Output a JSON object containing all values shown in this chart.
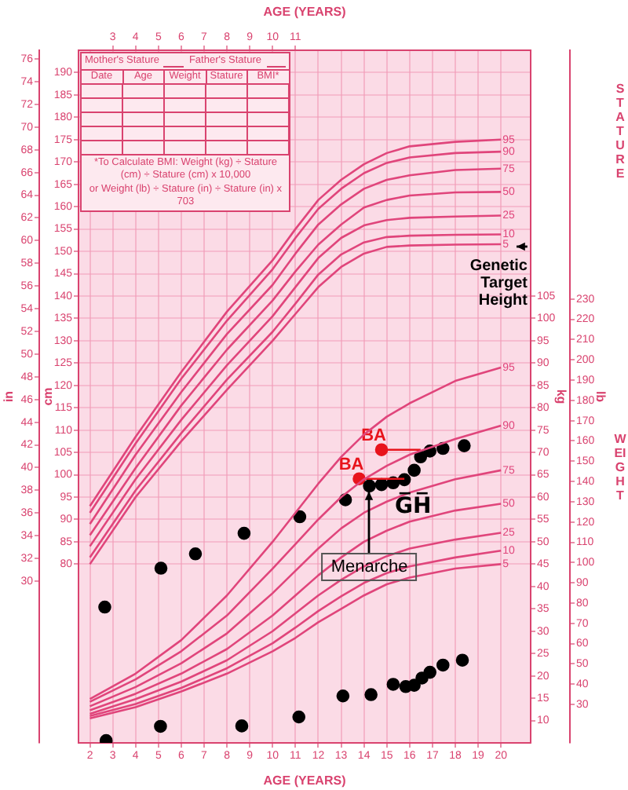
{
  "chart_data": [
    {
      "type": "line",
      "xlabel": "AGE (YEARS)",
      "x2label": "AGE (YEARS)",
      "ylabel": "cm",
      "y2label": "in",
      "xlim": [
        1.5,
        21.3
      ],
      "xticks": [
        2,
        3,
        4,
        5,
        6,
        7,
        8,
        9,
        10,
        11,
        12,
        13,
        14,
        15,
        16,
        17,
        18,
        19,
        20
      ],
      "x2lim": [
        1.5,
        21.3
      ],
      "x2ticks": [
        3,
        4,
        5,
        6,
        7,
        8,
        9,
        10,
        11
      ],
      "ylim": [
        40,
        195
      ],
      "yticks": [
        80,
        85,
        90,
        95,
        100,
        105,
        110,
        115,
        120,
        125,
        130,
        135,
        140,
        145,
        150,
        155,
        160,
        165,
        170,
        175,
        180,
        185,
        190
      ],
      "y2lim": [
        15.75,
        76.77
      ],
      "y2ticks": [
        30,
        32,
        34,
        36,
        38,
        40,
        42,
        44,
        46,
        48,
        50,
        52,
        54,
        56,
        58,
        60,
        62,
        64,
        66,
        68,
        70,
        72,
        74,
        76
      ],
      "grid": true,
      "legend": false,
      "x": [
        2,
        4,
        6,
        8,
        10,
        11,
        12,
        13,
        14,
        15,
        16,
        18,
        20
      ],
      "series": [
        {
          "name": "95",
          "color": "#e0457b",
          "marker": "none",
          "values": [
            93,
            108.5,
            123,
            136.5,
            148,
            155,
            161.5,
            166,
            169.5,
            172,
            173.5,
            174.5,
            175
          ]
        },
        {
          "name": "90",
          "color": "#e0457b",
          "marker": "none",
          "values": [
            91.5,
            107,
            121.5,
            134.5,
            146,
            153,
            159.5,
            164,
            167.5,
            169.8,
            171,
            172,
            172.3
          ]
        },
        {
          "name": "75",
          "color": "#e0457b",
          "marker": "none",
          "values": [
            89,
            104.5,
            118.5,
            131.5,
            142.5,
            149.5,
            156,
            160.5,
            164,
            166,
            167,
            168.2,
            168.5
          ]
        },
        {
          "name": "50",
          "color": "#e0457b",
          "marker": "none",
          "values": [
            86.5,
            101.5,
            115.5,
            128,
            139,
            145.5,
            151.5,
            156,
            159.8,
            161.5,
            162.5,
            163.2,
            163.3
          ]
        },
        {
          "name": "25",
          "color": "#e0457b",
          "marker": "none",
          "values": [
            84,
            99,
            112.3,
            124.5,
            135.5,
            142,
            148.5,
            153,
            155.8,
            157,
            157.5,
            157.8,
            158
          ]
        },
        {
          "name": "10",
          "color": "#e0457b",
          "marker": "none",
          "values": [
            81.5,
            96.5,
            109.3,
            121.3,
            132,
            138.3,
            144.8,
            149.3,
            152,
            153.2,
            153.5,
            153.7,
            153.8
          ]
        },
        {
          "name": "5",
          "color": "#e0457b",
          "marker": "none",
          "values": [
            80,
            95,
            107.5,
            119,
            130,
            136,
            142,
            146.5,
            149.5,
            151,
            151.3,
            151.5,
            151.6
          ]
        },
        {
          "color": "#e8141c",
          "marker": "none",
          "x": [
            13.79,
            15.77
          ],
          "values": [
            99.1,
            99.1
          ]
        },
        {
          "color": "#e8141c",
          "marker": "none",
          "x": [
            14.77,
            16.48
          ],
          "values": [
            105.6,
            105.6
          ]
        },
        {
          "type": "scatter",
          "color": "#000000",
          "marker": "circle",
          "x": [
            2.65,
            5.11,
            6.62,
            8.75,
            11.19,
            13.19,
            14.24,
            14.77,
            15.28,
            15.77,
            16.2,
            16.48,
            16.89,
            17.46,
            18.39
          ],
          "values": [
            70.4,
            79.1,
            82.3,
            86.9,
            90.6,
            94.4,
            97.5,
            97.8,
            98.2,
            98.9,
            101,
            104,
            105.3,
            105.9,
            106.5
          ]
        },
        {
          "type": "scatter",
          "color": "#e8141c",
          "marker": "circle",
          "x": [
            13.79,
            14.77
          ],
          "values": [
            99.1,
            105.6
          ]
        }
      ],
      "annotations": [
        "Mother's Stature",
        "Father's Stature",
        "Date",
        "Age",
        "Weight",
        "Stature",
        "BMI*",
        "*To Calculate BMI: Weight (kg) ÷ Stature (cm) ÷ Stature (cm) x 10,000",
        "or Weight (lb) ÷ Stature (in) ÷ Stature (in) x 703",
        "STATURE",
        {
          "text": "BA",
          "x": 13.79,
          "y": 99.1
        },
        {
          "text": "BA",
          "x": 14.77,
          "y": 105.6
        },
        {
          "text": "Menarche",
          "x": 14.24,
          "y": 97.5
        },
        {
          "text": "Genetic Target Height",
          "x": 20,
          "y": 151
        }
      ]
    },
    {
      "type": "line",
      "ylabel": "kg",
      "y2label": "lb",
      "tick_labels": "y",
      "legend": false,
      "xlim": [
        1.5,
        21.3
      ],
      "ylim": [
        5,
        160
      ],
      "yticks": [
        10,
        15,
        20,
        25,
        30,
        35,
        40,
        45,
        50,
        55,
        60,
        65,
        70,
        75,
        80,
        85,
        90,
        95,
        100,
        105
      ],
      "y2lim": [
        11.02,
        352.74
      ],
      "y2ticks": [
        30,
        40,
        50,
        60,
        70,
        80,
        90,
        100,
        110,
        120,
        130,
        140,
        150,
        160,
        170,
        180,
        190,
        200,
        210,
        220,
        230
      ],
      "x": [
        2,
        4,
        6,
        8,
        10,
        11,
        12,
        13,
        14,
        15,
        16,
        18,
        20
      ],
      "series": [
        {
          "name": "95",
          "color": "#e0457b",
          "marker": "none",
          "values": [
            14.8,
            20.5,
            28,
            38,
            50,
            56.5,
            63,
            69,
            74,
            78,
            81,
            86,
            89
          ]
        },
        {
          "name": "90",
          "color": "#e0457b",
          "marker": "none",
          "values": [
            14.2,
            19.2,
            25.5,
            33.5,
            44,
            49.5,
            55,
            60,
            64,
            67,
            69.5,
            73,
            76
          ]
        },
        {
          "name": "75",
          "color": "#e0457b",
          "marker": "none",
          "values": [
            13.2,
            17.5,
            22.8,
            29.5,
            38.5,
            43.5,
            48.5,
            53,
            56.5,
            59,
            61,
            64,
            66
          ]
        },
        {
          "name": "50",
          "color": "#e0457b",
          "marker": "none",
          "values": [
            12.3,
            16,
            20.5,
            26,
            33.5,
            38,
            42.5,
            46.5,
            50,
            52.5,
            54.5,
            57,
            58.5
          ]
        },
        {
          "name": "25",
          "color": "#e0457b",
          "marker": "none",
          "values": [
            11.5,
            14.8,
            18.7,
            23.5,
            30,
            34,
            38,
            41.5,
            44.5,
            46.8,
            48.5,
            50.5,
            52
          ]
        },
        {
          "name": "10",
          "color": "#e0457b",
          "marker": "none",
          "values": [
            11,
            13.7,
            17.3,
            21.7,
            27.3,
            30.8,
            34.5,
            37.8,
            40.8,
            43,
            44.5,
            46.5,
            48
          ]
        },
        {
          "name": "5",
          "color": "#e0457b",
          "marker": "none",
          "values": [
            10.5,
            13,
            16.5,
            20.5,
            25.5,
            28.5,
            32,
            35,
            38,
            40.5,
            42,
            44,
            45
          ]
        },
        {
          "type": "scatter",
          "color": "#000000",
          "marker": "circle",
          "x": [
            2.71,
            5.09,
            8.65,
            11.15,
            13.08,
            14.31,
            15.28,
            15.83,
            16.2,
            16.54,
            16.89,
            17.46,
            18.31
          ],
          "values": [
            5.5,
            8.7,
            8.8,
            10.8,
            15.5,
            15.8,
            18.1,
            17.6,
            17.9,
            19.5,
            20.8,
            22.4,
            23.5
          ]
        }
      ],
      "annotations": [
        "WEIGHT",
        "G̅H̅"
      ]
    }
  ]
}
